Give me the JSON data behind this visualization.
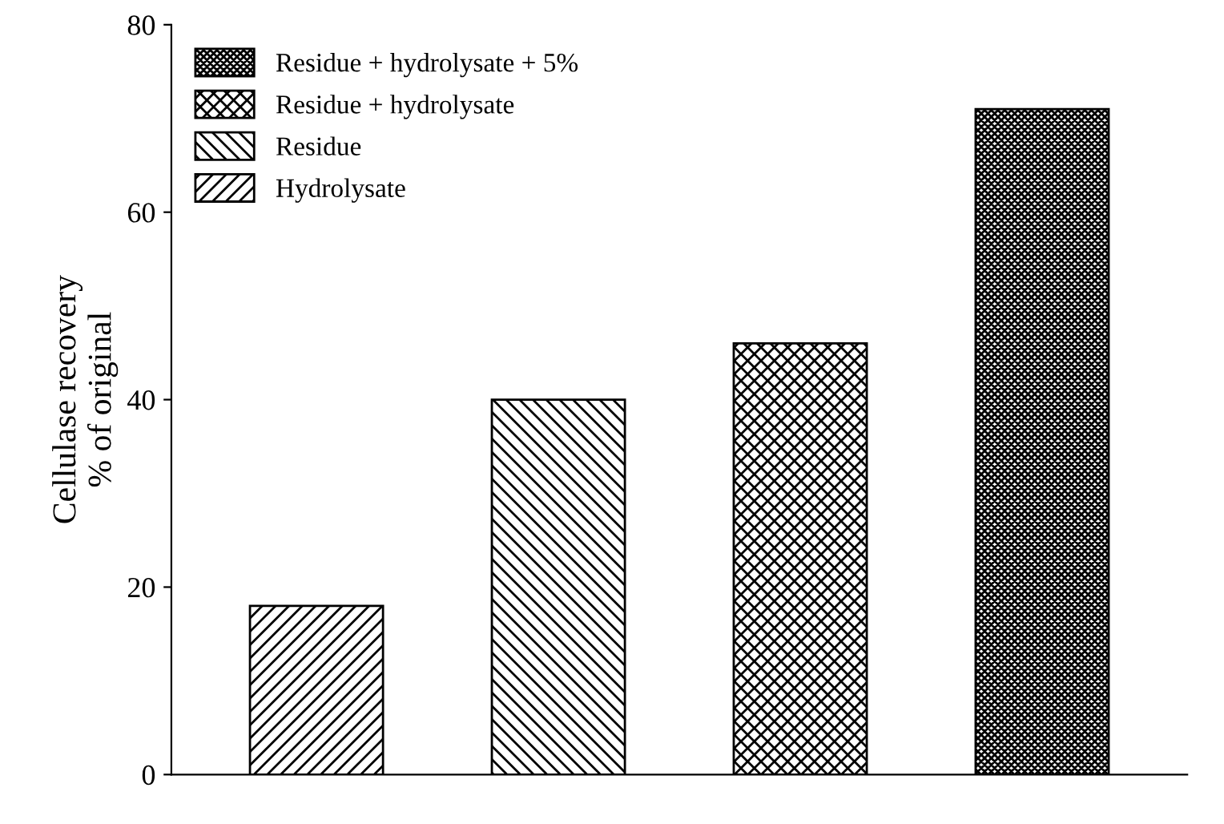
{
  "chart_data": {
    "type": "bar",
    "ylabel": "Cellulase recovery\n% of original",
    "categories": [
      null,
      null,
      null,
      null
    ],
    "series": [
      {
        "name": "Residue + hydrolysate + 5%",
        "color": "#000000",
        "values": [
          null,
          null,
          null,
          71
        ]
      },
      {
        "name": "Residue + hydrolysate",
        "color": "#000000",
        "values": [
          null,
          null,
          46,
          null
        ]
      },
      {
        "name": "Residue",
        "color": "#000000",
        "values": [
          null,
          40,
          null,
          null
        ]
      },
      {
        "name": "Hydrolysate",
        "color": "#000000",
        "values": [
          18,
          null,
          null,
          null
        ]
      }
    ],
    "ylim": [
      0,
      80
    ],
    "yticks": [
      0,
      20,
      40,
      60,
      80
    ],
    "grid": false,
    "legend": "top left"
  }
}
